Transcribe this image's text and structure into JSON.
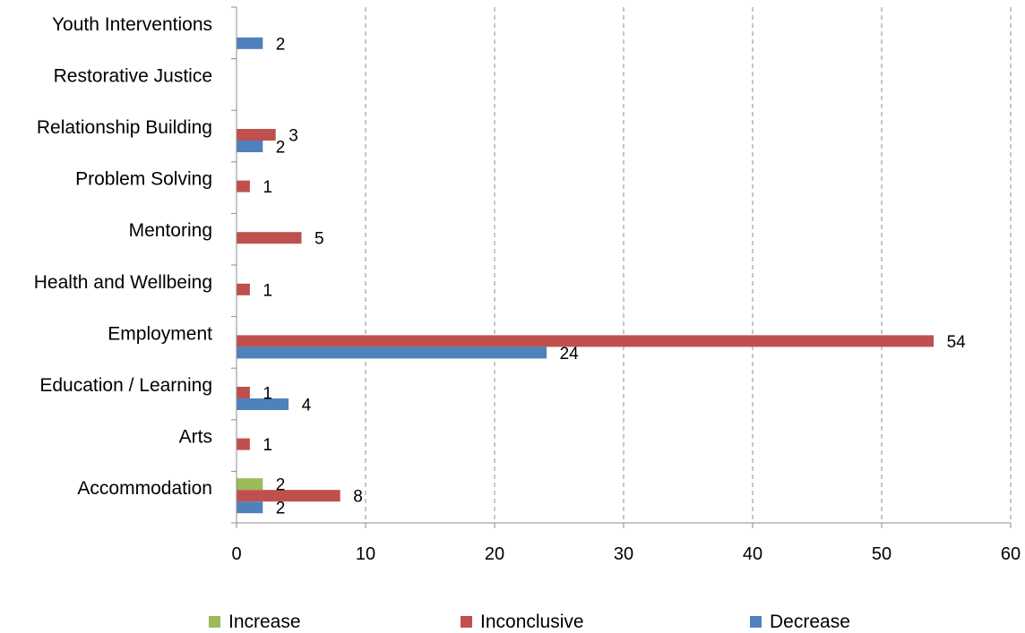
{
  "chart_data": {
    "type": "bar",
    "orientation": "horizontal",
    "categories": [
      "Accommodation",
      "Arts",
      "Education / Learning",
      "Employment",
      "Health and Wellbeing",
      "Mentoring",
      "Problem Solving",
      "Relationship Building",
      "Restorative Justice",
      "Youth Interventions"
    ],
    "series": [
      {
        "name": "Increase",
        "color": "#9BBB59",
        "values": [
          2,
          null,
          null,
          null,
          null,
          null,
          null,
          null,
          null,
          null
        ]
      },
      {
        "name": "Inconclusive",
        "color": "#C0504D",
        "values": [
          8,
          1,
          1,
          54,
          1,
          5,
          1,
          3,
          null,
          null
        ]
      },
      {
        "name": "Decrease",
        "color": "#4F81BD",
        "values": [
          2,
          null,
          4,
          24,
          null,
          null,
          null,
          2,
          null,
          2
        ]
      }
    ],
    "xlim": [
      0,
      60
    ],
    "xticks": [
      "0",
      "10",
      "20",
      "30",
      "40",
      "50",
      "60"
    ],
    "grid": "vertical-dashed",
    "legend_position": "bottom",
    "title": "",
    "xlabel": "",
    "ylabel": ""
  }
}
